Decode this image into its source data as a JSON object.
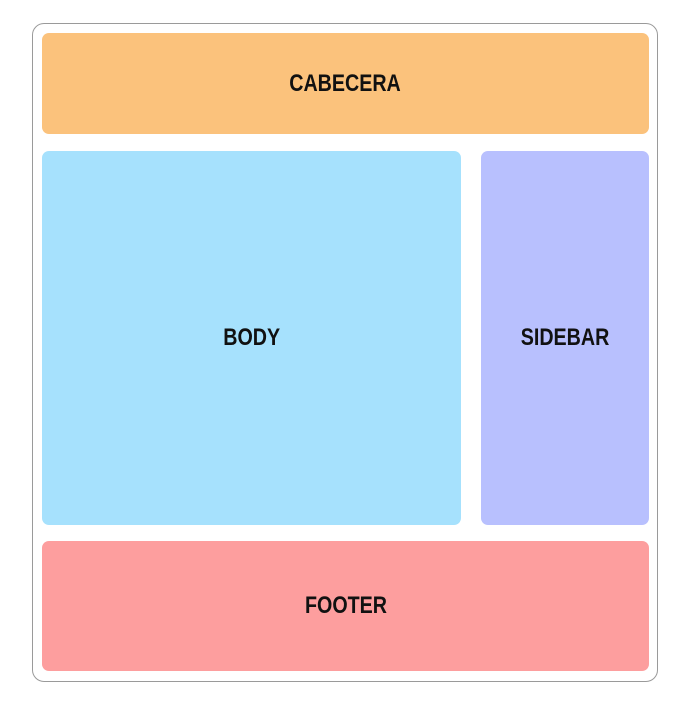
{
  "regions": {
    "header": {
      "label": "CABECERA",
      "color": "#fbc27c"
    },
    "body": {
      "label": "BODY",
      "color": "#a6e1fd"
    },
    "sidebar": {
      "label": "SIDEBAR",
      "color": "#b8c0fe"
    },
    "footer": {
      "label": "FOOTER",
      "color": "#fd9e9e"
    }
  }
}
